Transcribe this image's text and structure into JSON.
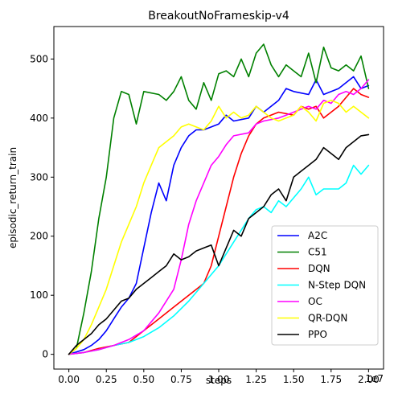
{
  "chart_data": {
    "type": "line",
    "title": "BreakoutNoFrameskip-v4",
    "xlabel": "steps",
    "ylabel": "episodic_return_train",
    "x_offset_label": "1e7",
    "x_ticks": [
      0,
      2500000,
      5000000,
      7500000,
      10000000,
      12500000,
      15000000,
      17500000,
      20000000
    ],
    "x_tick_labels": [
      "0.00",
      "0.25",
      "0.50",
      "0.75",
      "1.00",
      "1.25",
      "1.50",
      "1.75",
      "2.00"
    ],
    "y_ticks": [
      0,
      100,
      200,
      300,
      400,
      500
    ],
    "y_tick_labels": [
      "0",
      "100",
      "200",
      "300",
      "400",
      "500"
    ],
    "xlim": [
      -1000000,
      21000000
    ],
    "ylim": [
      -25,
      555
    ],
    "grid": false,
    "legend_position": "lower-right",
    "series": [
      {
        "name": "A2C",
        "color": "#0000ff",
        "points": [
          [
            0,
            0
          ],
          [
            1000000,
            8
          ],
          [
            1500000,
            15
          ],
          [
            2000000,
            25
          ],
          [
            2500000,
            40
          ],
          [
            3000000,
            60
          ],
          [
            3500000,
            80
          ],
          [
            4000000,
            95
          ],
          [
            4500000,
            120
          ],
          [
            5000000,
            180
          ],
          [
            5500000,
            240
          ],
          [
            6000000,
            290
          ],
          [
            6500000,
            260
          ],
          [
            7000000,
            320
          ],
          [
            7500000,
            350
          ],
          [
            8000000,
            370
          ],
          [
            8500000,
            380
          ],
          [
            9000000,
            380
          ],
          [
            10000000,
            390
          ],
          [
            10500000,
            405
          ],
          [
            11000000,
            395
          ],
          [
            12000000,
            400
          ],
          [
            12500000,
            420
          ],
          [
            13000000,
            410
          ],
          [
            14000000,
            430
          ],
          [
            14500000,
            450
          ],
          [
            15000000,
            445
          ],
          [
            16000000,
            440
          ],
          [
            16500000,
            465
          ],
          [
            17000000,
            440
          ],
          [
            18000000,
            450
          ],
          [
            19000000,
            470
          ],
          [
            19500000,
            450
          ],
          [
            20000000,
            455
          ]
        ]
      },
      {
        "name": "C51",
        "color": "#008000",
        "points": [
          [
            0,
            0
          ],
          [
            500000,
            10
          ],
          [
            1000000,
            70
          ],
          [
            1500000,
            140
          ],
          [
            2000000,
            230
          ],
          [
            2500000,
            300
          ],
          [
            3000000,
            400
          ],
          [
            3500000,
            445
          ],
          [
            4000000,
            440
          ],
          [
            4500000,
            390
          ],
          [
            5000000,
            445
          ],
          [
            6000000,
            440
          ],
          [
            6500000,
            430
          ],
          [
            7000000,
            445
          ],
          [
            7500000,
            470
          ],
          [
            8000000,
            430
          ],
          [
            8500000,
            415
          ],
          [
            9000000,
            460
          ],
          [
            9500000,
            430
          ],
          [
            10000000,
            475
          ],
          [
            10500000,
            480
          ],
          [
            11000000,
            470
          ],
          [
            11500000,
            500
          ],
          [
            12000000,
            470
          ],
          [
            12500000,
            510
          ],
          [
            13000000,
            525
          ],
          [
            13500000,
            490
          ],
          [
            14000000,
            470
          ],
          [
            14500000,
            490
          ],
          [
            15000000,
            480
          ],
          [
            15500000,
            470
          ],
          [
            16000000,
            510
          ],
          [
            16500000,
            460
          ],
          [
            17000000,
            520
          ],
          [
            17500000,
            485
          ],
          [
            18000000,
            480
          ],
          [
            18500000,
            490
          ],
          [
            19000000,
            480
          ],
          [
            19500000,
            505
          ],
          [
            20000000,
            450
          ]
        ]
      },
      {
        "name": "DQN",
        "color": "#ff0000",
        "points": [
          [
            0,
            0
          ],
          [
            1000000,
            3
          ],
          [
            2000000,
            10
          ],
          [
            3000000,
            15
          ],
          [
            4000000,
            20
          ],
          [
            5000000,
            40
          ],
          [
            6000000,
            60
          ],
          [
            7000000,
            80
          ],
          [
            8000000,
            100
          ],
          [
            9000000,
            120
          ],
          [
            9500000,
            150
          ],
          [
            10000000,
            200
          ],
          [
            10500000,
            250
          ],
          [
            11000000,
            300
          ],
          [
            11500000,
            340
          ],
          [
            12000000,
            370
          ],
          [
            12500000,
            390
          ],
          [
            13000000,
            400
          ],
          [
            14000000,
            410
          ],
          [
            15000000,
            405
          ],
          [
            15500000,
            420
          ],
          [
            16000000,
            415
          ],
          [
            16500000,
            420
          ],
          [
            17000000,
            400
          ],
          [
            17500000,
            410
          ],
          [
            18000000,
            420
          ],
          [
            19000000,
            450
          ],
          [
            19500000,
            440
          ],
          [
            20000000,
            435
          ]
        ]
      },
      {
        "name": "N-Step DQN",
        "color": "#00ffff",
        "points": [
          [
            0,
            0
          ],
          [
            1000000,
            3
          ],
          [
            2000000,
            8
          ],
          [
            3000000,
            15
          ],
          [
            4000000,
            20
          ],
          [
            5000000,
            30
          ],
          [
            6000000,
            45
          ],
          [
            7000000,
            65
          ],
          [
            8000000,
            90
          ],
          [
            9000000,
            120
          ],
          [
            10000000,
            150
          ],
          [
            11000000,
            190
          ],
          [
            12000000,
            230
          ],
          [
            12500000,
            245
          ],
          [
            13000000,
            250
          ],
          [
            13500000,
            240
          ],
          [
            14000000,
            260
          ],
          [
            14500000,
            250
          ],
          [
            15000000,
            265
          ],
          [
            15500000,
            280
          ],
          [
            16000000,
            300
          ],
          [
            16500000,
            270
          ],
          [
            17000000,
            280
          ],
          [
            18000000,
            280
          ],
          [
            18500000,
            290
          ],
          [
            19000000,
            320
          ],
          [
            19500000,
            305
          ],
          [
            20000000,
            320
          ]
        ]
      },
      {
        "name": "OC",
        "color": "#ff00ff",
        "points": [
          [
            0,
            0
          ],
          [
            1000000,
            3
          ],
          [
            2000000,
            8
          ],
          [
            3000000,
            15
          ],
          [
            4000000,
            25
          ],
          [
            5000000,
            40
          ],
          [
            6000000,
            70
          ],
          [
            7000000,
            110
          ],
          [
            7500000,
            160
          ],
          [
            8000000,
            220
          ],
          [
            8500000,
            260
          ],
          [
            9000000,
            290
          ],
          [
            9500000,
            320
          ],
          [
            10000000,
            335
          ],
          [
            10500000,
            355
          ],
          [
            11000000,
            370
          ],
          [
            12000000,
            375
          ],
          [
            12500000,
            390
          ],
          [
            13000000,
            395
          ],
          [
            14000000,
            400
          ],
          [
            14500000,
            405
          ],
          [
            15000000,
            410
          ],
          [
            15500000,
            415
          ],
          [
            16000000,
            420
          ],
          [
            16500000,
            415
          ],
          [
            17000000,
            430
          ],
          [
            17500000,
            425
          ],
          [
            18000000,
            440
          ],
          [
            18500000,
            445
          ],
          [
            19000000,
            440
          ],
          [
            19500000,
            450
          ],
          [
            20000000,
            465
          ]
        ]
      },
      {
        "name": "QR-DQN",
        "color": "#ffff00",
        "points": [
          [
            0,
            0
          ],
          [
            500000,
            10
          ],
          [
            1000000,
            25
          ],
          [
            1500000,
            50
          ],
          [
            2000000,
            80
          ],
          [
            2500000,
            110
          ],
          [
            3000000,
            150
          ],
          [
            3500000,
            190
          ],
          [
            4000000,
            220
          ],
          [
            4500000,
            250
          ],
          [
            5000000,
            290
          ],
          [
            5500000,
            320
          ],
          [
            6000000,
            350
          ],
          [
            6500000,
            360
          ],
          [
            7000000,
            370
          ],
          [
            7500000,
            385
          ],
          [
            8000000,
            390
          ],
          [
            8500000,
            385
          ],
          [
            9000000,
            380
          ],
          [
            9500000,
            395
          ],
          [
            10000000,
            420
          ],
          [
            10500000,
            400
          ],
          [
            11000000,
            410
          ],
          [
            11500000,
            400
          ],
          [
            12000000,
            405
          ],
          [
            12500000,
            420
          ],
          [
            13000000,
            410
          ],
          [
            13500000,
            400
          ],
          [
            14000000,
            395
          ],
          [
            14500000,
            400
          ],
          [
            15000000,
            405
          ],
          [
            15500000,
            420
          ],
          [
            16000000,
            410
          ],
          [
            16500000,
            395
          ],
          [
            17000000,
            425
          ],
          [
            17500000,
            430
          ],
          [
            18000000,
            425
          ],
          [
            18500000,
            410
          ],
          [
            19000000,
            420
          ],
          [
            19500000,
            410
          ],
          [
            20000000,
            400
          ]
        ]
      },
      {
        "name": "PPO",
        "color": "#000000",
        "points": [
          [
            0,
            0
          ],
          [
            500000,
            15
          ],
          [
            1000000,
            25
          ],
          [
            1500000,
            35
          ],
          [
            2000000,
            50
          ],
          [
            2500000,
            60
          ],
          [
            3000000,
            75
          ],
          [
            3500000,
            90
          ],
          [
            4000000,
            95
          ],
          [
            4500000,
            110
          ],
          [
            5000000,
            120
          ],
          [
            5500000,
            130
          ],
          [
            6000000,
            140
          ],
          [
            6500000,
            150
          ],
          [
            7000000,
            170
          ],
          [
            7500000,
            160
          ],
          [
            8000000,
            165
          ],
          [
            8500000,
            175
          ],
          [
            9000000,
            180
          ],
          [
            9500000,
            185
          ],
          [
            10000000,
            150
          ],
          [
            10500000,
            180
          ],
          [
            11000000,
            210
          ],
          [
            11500000,
            200
          ],
          [
            12000000,
            230
          ],
          [
            12500000,
            240
          ],
          [
            13000000,
            250
          ],
          [
            13500000,
            270
          ],
          [
            14000000,
            280
          ],
          [
            14500000,
            260
          ],
          [
            15000000,
            300
          ],
          [
            15500000,
            310
          ],
          [
            16000000,
            320
          ],
          [
            16500000,
            330
          ],
          [
            17000000,
            350
          ],
          [
            17500000,
            340
          ],
          [
            18000000,
            330
          ],
          [
            18500000,
            350
          ],
          [
            19000000,
            360
          ],
          [
            19500000,
            370
          ],
          [
            20000000,
            372
          ]
        ]
      }
    ]
  }
}
